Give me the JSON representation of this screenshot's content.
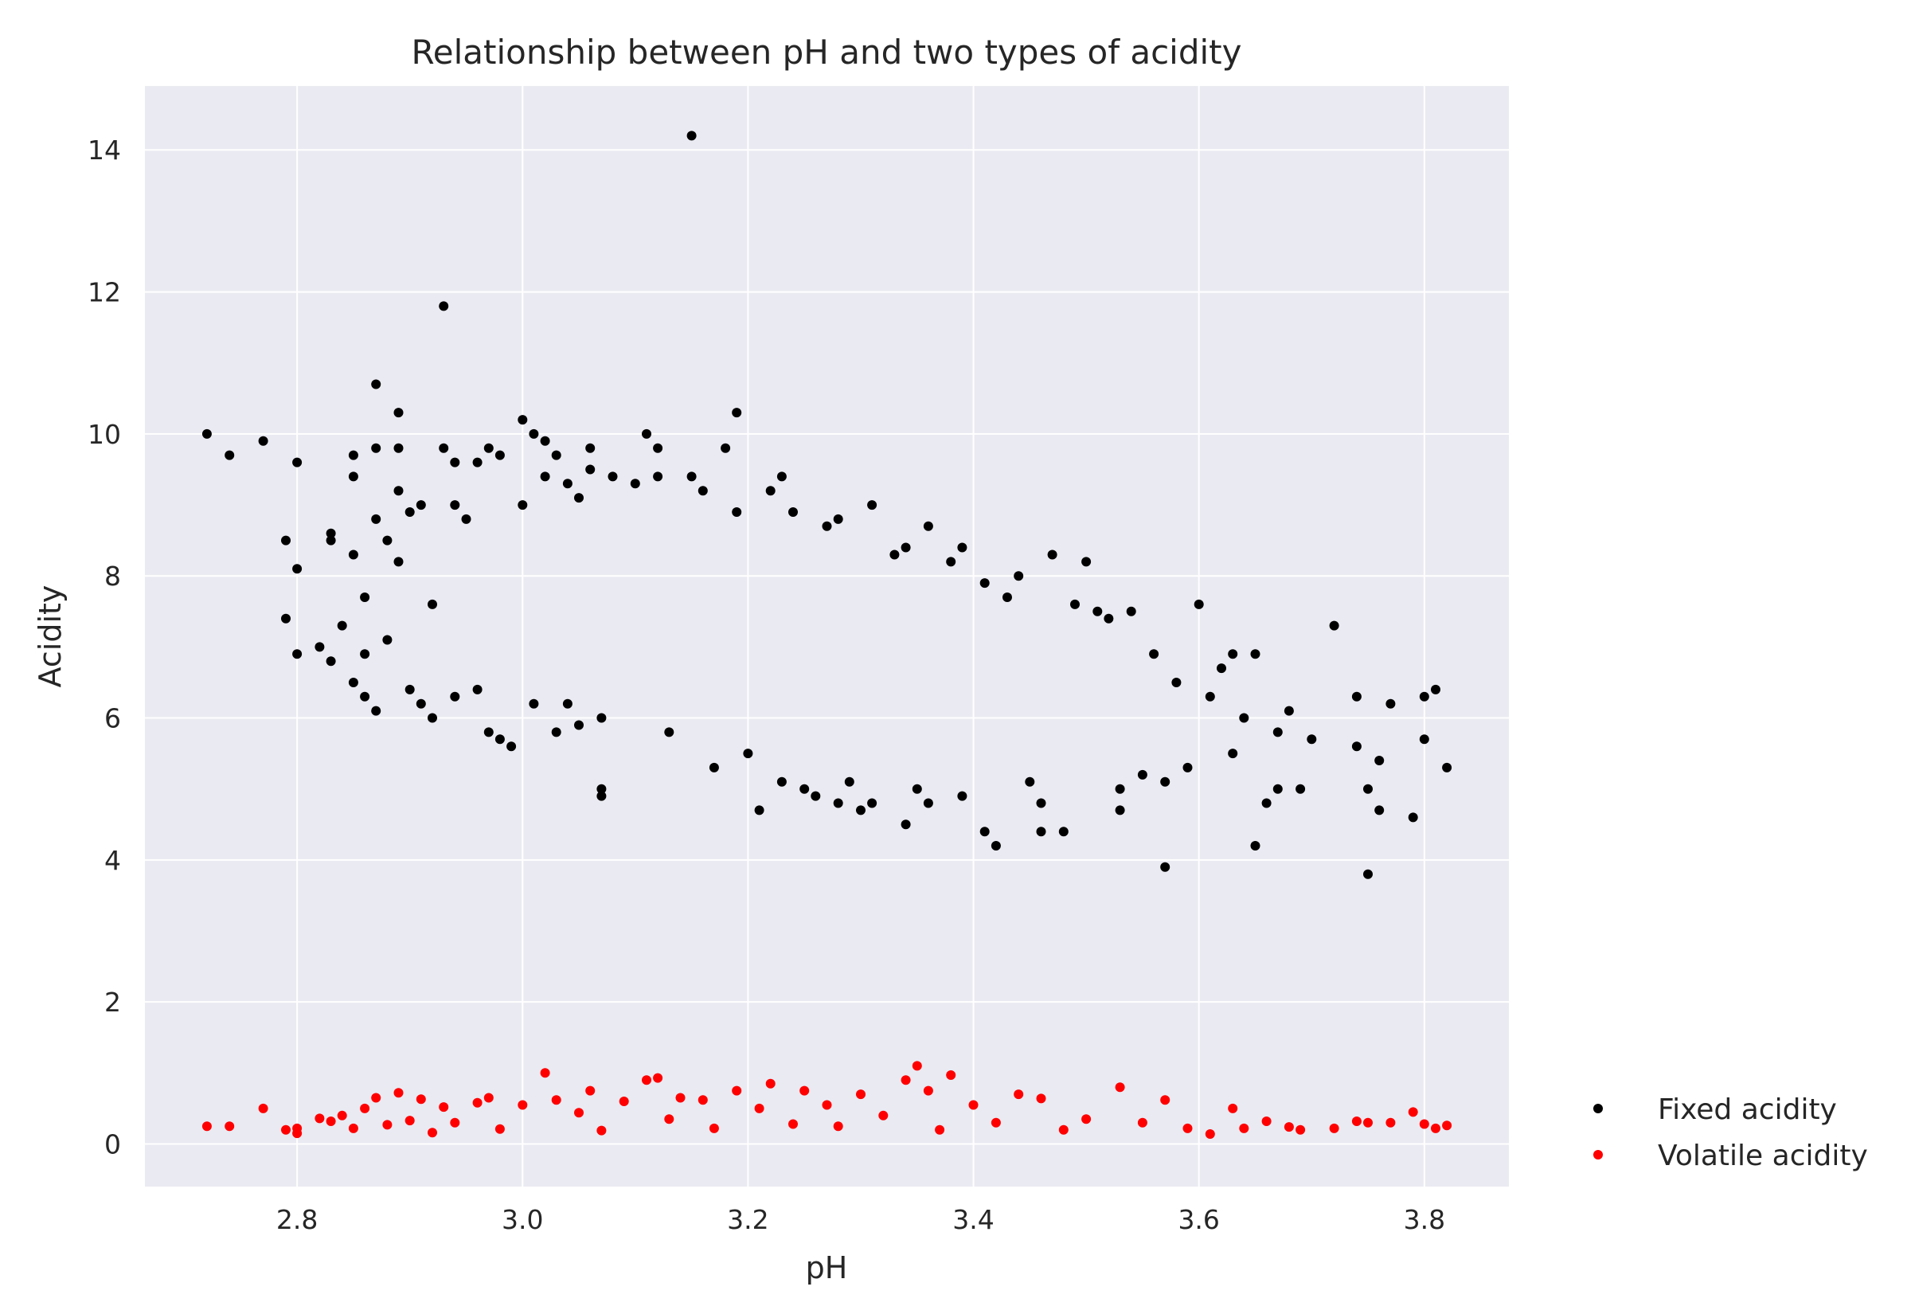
{
  "chart_data": {
    "type": "scatter",
    "title": "Relationship between pH and two types of acidity",
    "xlabel": "pH",
    "ylabel": "Acidity",
    "xlim": [
      2.665,
      3.875
    ],
    "ylim": [
      -0.6,
      14.9
    ],
    "xticks": [
      "2.8",
      "3.0",
      "3.2",
      "3.4",
      "3.6",
      "3.8"
    ],
    "yticks": [
      "0",
      "2",
      "4",
      "6",
      "8",
      "10",
      "12",
      "14"
    ],
    "grid": true,
    "background": "#eaeaf2",
    "legend_position": "right",
    "series": [
      {
        "name": "Fixed acidity",
        "color": "#000000",
        "points": [
          [
            2.72,
            10.0
          ],
          [
            2.74,
            9.7
          ],
          [
            2.77,
            9.9
          ],
          [
            2.79,
            8.5
          ],
          [
            2.79,
            7.4
          ],
          [
            2.8,
            9.6
          ],
          [
            2.8,
            8.1
          ],
          [
            2.8,
            6.9
          ],
          [
            2.82,
            7.0
          ],
          [
            2.83,
            8.6
          ],
          [
            2.83,
            8.5
          ],
          [
            2.83,
            6.8
          ],
          [
            2.84,
            7.3
          ],
          [
            2.85,
            9.7
          ],
          [
            2.85,
            9.4
          ],
          [
            2.85,
            8.3
          ],
          [
            2.85,
            6.5
          ],
          [
            2.86,
            7.7
          ],
          [
            2.86,
            6.3
          ],
          [
            2.86,
            6.9
          ],
          [
            2.87,
            10.7
          ],
          [
            2.87,
            9.8
          ],
          [
            2.87,
            8.8
          ],
          [
            2.87,
            6.1
          ],
          [
            2.88,
            8.5
          ],
          [
            2.88,
            7.1
          ],
          [
            2.89,
            10.3
          ],
          [
            2.89,
            9.8
          ],
          [
            2.89,
            9.2
          ],
          [
            2.89,
            8.2
          ],
          [
            2.9,
            8.9
          ],
          [
            2.9,
            6.4
          ],
          [
            2.91,
            9.0
          ],
          [
            2.91,
            6.2
          ],
          [
            2.92,
            7.6
          ],
          [
            2.92,
            6.0
          ],
          [
            2.93,
            11.8
          ],
          [
            2.93,
            9.8
          ],
          [
            2.94,
            9.6
          ],
          [
            2.94,
            9.0
          ],
          [
            2.94,
            6.3
          ],
          [
            2.95,
            8.8
          ],
          [
            2.96,
            9.6
          ],
          [
            2.96,
            6.4
          ],
          [
            2.97,
            9.8
          ],
          [
            2.97,
            5.8
          ],
          [
            2.98,
            9.7
          ],
          [
            2.98,
            5.7
          ],
          [
            2.99,
            5.6
          ],
          [
            3.0,
            10.2
          ],
          [
            3.0,
            9.0
          ],
          [
            3.01,
            10.0
          ],
          [
            3.01,
            6.2
          ],
          [
            3.02,
            9.9
          ],
          [
            3.02,
            9.4
          ],
          [
            3.03,
            9.7
          ],
          [
            3.03,
            5.8
          ],
          [
            3.04,
            9.3
          ],
          [
            3.04,
            6.2
          ],
          [
            3.05,
            9.1
          ],
          [
            3.05,
            5.9
          ],
          [
            3.06,
            9.8
          ],
          [
            3.06,
            9.5
          ],
          [
            3.07,
            5.0
          ],
          [
            3.07,
            4.9
          ],
          [
            3.07,
            6.0
          ],
          [
            3.08,
            9.4
          ],
          [
            3.1,
            9.3
          ],
          [
            3.11,
            10.0
          ],
          [
            3.12,
            9.8
          ],
          [
            3.12,
            9.4
          ],
          [
            3.13,
            5.8
          ],
          [
            3.15,
            14.2
          ],
          [
            3.15,
            9.4
          ],
          [
            3.16,
            9.2
          ],
          [
            3.17,
            5.3
          ],
          [
            3.18,
            9.8
          ],
          [
            3.19,
            10.3
          ],
          [
            3.19,
            8.9
          ],
          [
            3.2,
            5.5
          ],
          [
            3.21,
            4.7
          ],
          [
            3.22,
            9.2
          ],
          [
            3.23,
            9.4
          ],
          [
            3.23,
            5.1
          ],
          [
            3.24,
            8.9
          ],
          [
            3.25,
            5.0
          ],
          [
            3.26,
            4.9
          ],
          [
            3.27,
            8.7
          ],
          [
            3.28,
            8.8
          ],
          [
            3.28,
            4.8
          ],
          [
            3.29,
            5.1
          ],
          [
            3.3,
            4.7
          ],
          [
            3.31,
            9.0
          ],
          [
            3.31,
            4.8
          ],
          [
            3.33,
            8.3
          ],
          [
            3.34,
            8.4
          ],
          [
            3.34,
            4.5
          ],
          [
            3.35,
            5.0
          ],
          [
            3.36,
            8.7
          ],
          [
            3.36,
            4.8
          ],
          [
            3.38,
            8.2
          ],
          [
            3.39,
            8.4
          ],
          [
            3.39,
            4.9
          ],
          [
            3.41,
            7.9
          ],
          [
            3.41,
            4.4
          ],
          [
            3.42,
            4.2
          ],
          [
            3.43,
            7.7
          ],
          [
            3.44,
            8.0
          ],
          [
            3.45,
            5.1
          ],
          [
            3.46,
            4.8
          ],
          [
            3.46,
            4.4
          ],
          [
            3.47,
            8.3
          ],
          [
            3.48,
            4.4
          ],
          [
            3.49,
            7.6
          ],
          [
            3.5,
            8.2
          ],
          [
            3.51,
            7.5
          ],
          [
            3.52,
            7.4
          ],
          [
            3.53,
            4.7
          ],
          [
            3.53,
            5.0
          ],
          [
            3.54,
            7.5
          ],
          [
            3.55,
            5.2
          ],
          [
            3.56,
            6.9
          ],
          [
            3.57,
            3.9
          ],
          [
            3.57,
            5.1
          ],
          [
            3.58,
            6.5
          ],
          [
            3.59,
            5.3
          ],
          [
            3.6,
            7.6
          ],
          [
            3.61,
            6.3
          ],
          [
            3.62,
            6.7
          ],
          [
            3.63,
            5.5
          ],
          [
            3.63,
            6.9
          ],
          [
            3.64,
            6.0
          ],
          [
            3.65,
            6.9
          ],
          [
            3.65,
            4.2
          ],
          [
            3.66,
            4.8
          ],
          [
            3.67,
            5.0
          ],
          [
            3.67,
            5.8
          ],
          [
            3.68,
            6.1
          ],
          [
            3.69,
            5.0
          ],
          [
            3.7,
            5.7
          ],
          [
            3.72,
            7.3
          ],
          [
            3.74,
            6.3
          ],
          [
            3.74,
            5.6
          ],
          [
            3.75,
            5.0
          ],
          [
            3.75,
            3.8
          ],
          [
            3.76,
            4.7
          ],
          [
            3.76,
            5.4
          ],
          [
            3.77,
            6.2
          ],
          [
            3.79,
            4.6
          ],
          [
            3.8,
            6.3
          ],
          [
            3.8,
            5.7
          ],
          [
            3.81,
            6.4
          ],
          [
            3.82,
            5.3
          ]
        ]
      },
      {
        "name": "Volatile acidity",
        "color": "#ff0000",
        "points": [
          [
            2.72,
            0.25
          ],
          [
            2.74,
            0.25
          ],
          [
            2.77,
            0.5
          ],
          [
            2.79,
            0.2
          ],
          [
            2.8,
            0.15
          ],
          [
            2.8,
            0.22
          ],
          [
            2.82,
            0.36
          ],
          [
            2.83,
            0.32
          ],
          [
            2.84,
            0.4
          ],
          [
            2.85,
            0.22
          ],
          [
            2.86,
            0.5
          ],
          [
            2.87,
            0.65
          ],
          [
            2.88,
            0.27
          ],
          [
            2.89,
            0.72
          ],
          [
            2.9,
            0.33
          ],
          [
            2.91,
            0.63
          ],
          [
            2.92,
            0.16
          ],
          [
            2.93,
            0.52
          ],
          [
            2.94,
            0.3
          ],
          [
            2.96,
            0.58
          ],
          [
            2.97,
            0.65
          ],
          [
            2.98,
            0.21
          ],
          [
            3.0,
            0.55
          ],
          [
            3.02,
            1.0
          ],
          [
            3.03,
            0.62
          ],
          [
            3.05,
            0.44
          ],
          [
            3.06,
            0.75
          ],
          [
            3.07,
            0.19
          ],
          [
            3.09,
            0.6
          ],
          [
            3.11,
            0.9
          ],
          [
            3.12,
            0.93
          ],
          [
            3.13,
            0.35
          ],
          [
            3.14,
            0.65
          ],
          [
            3.16,
            0.62
          ],
          [
            3.17,
            0.22
          ],
          [
            3.19,
            0.75
          ],
          [
            3.21,
            0.5
          ],
          [
            3.22,
            0.85
          ],
          [
            3.24,
            0.28
          ],
          [
            3.25,
            0.75
          ],
          [
            3.27,
            0.55
          ],
          [
            3.28,
            0.25
          ],
          [
            3.3,
            0.7
          ],
          [
            3.32,
            0.4
          ],
          [
            3.34,
            0.9
          ],
          [
            3.35,
            1.1
          ],
          [
            3.36,
            0.75
          ],
          [
            3.37,
            0.2
          ],
          [
            3.38,
            0.97
          ],
          [
            3.4,
            0.55
          ],
          [
            3.42,
            0.3
          ],
          [
            3.44,
            0.7
          ],
          [
            3.46,
            0.64
          ],
          [
            3.48,
            0.2
          ],
          [
            3.5,
            0.35
          ],
          [
            3.53,
            0.8
          ],
          [
            3.55,
            0.3
          ],
          [
            3.57,
            0.62
          ],
          [
            3.59,
            0.22
          ],
          [
            3.61,
            0.14
          ],
          [
            3.63,
            0.5
          ],
          [
            3.64,
            0.22
          ],
          [
            3.66,
            0.32
          ],
          [
            3.68,
            0.24
          ],
          [
            3.69,
            0.2
          ],
          [
            3.72,
            0.22
          ],
          [
            3.74,
            0.32
          ],
          [
            3.75,
            0.3
          ],
          [
            3.77,
            0.3
          ],
          [
            3.79,
            0.45
          ],
          [
            3.8,
            0.28
          ],
          [
            3.81,
            0.22
          ],
          [
            3.82,
            0.26
          ]
        ]
      }
    ]
  }
}
